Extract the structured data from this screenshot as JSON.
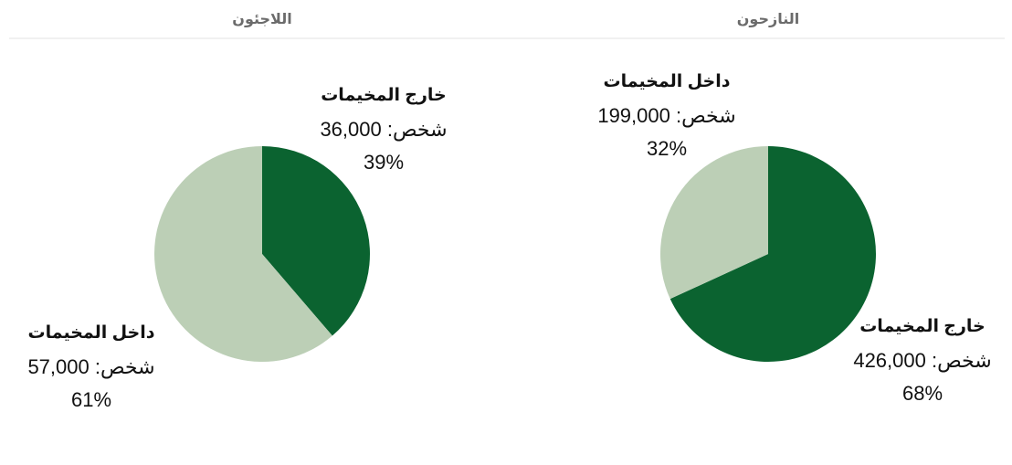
{
  "chart_data": [
    {
      "type": "pie",
      "title": "النازحون",
      "categories": [
        "خارج المخيمات",
        "داخل المخيمات"
      ],
      "values": [
        426000,
        199000
      ],
      "value_labels": [
        "شخص: 426,000",
        "شخص: 199,000"
      ],
      "percents": [
        68,
        32
      ],
      "percent_labels": [
        "68%",
        "32%"
      ],
      "colors": [
        "#0b6330",
        "#bccfb6"
      ]
    },
    {
      "type": "pie",
      "title": "اللاجئون",
      "categories": [
        "خارج المخيمات",
        "داخل المخيمات"
      ],
      "values": [
        36000,
        57000
      ],
      "value_labels": [
        "شخص: 36,000",
        "شخص: 57,000"
      ],
      "percents": [
        39,
        61
      ],
      "percent_labels": [
        "39%",
        "61%"
      ],
      "colors": [
        "#0b6330",
        "#bccfb6"
      ]
    }
  ]
}
